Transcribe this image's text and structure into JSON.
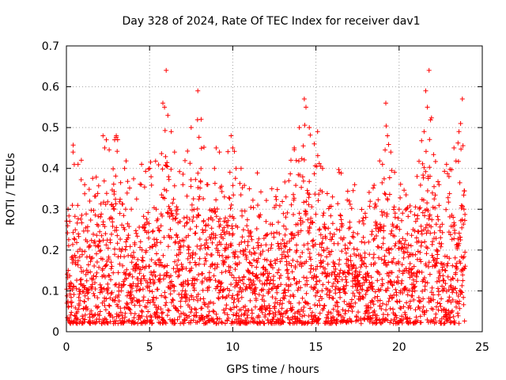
{
  "chart_data": {
    "type": "scatter",
    "title": "Day 328 of 2024, Rate Of TEC Index for receiver dav1",
    "xlabel": "GPS time / hours",
    "ylabel": "ROTI / TECUs",
    "xlim": [
      0,
      25
    ],
    "ylim": [
      0,
      0.7
    ],
    "x_ticks": [
      "0",
      "5",
      "10",
      "15",
      "20",
      "25"
    ],
    "y_ticks": [
      "0",
      "0.1",
      "0.2",
      "0.3",
      "0.4",
      "0.5",
      "0.6",
      "0.7"
    ],
    "grid": true,
    "marker": "plus",
    "series": [
      {
        "name": "ROTI",
        "color": "#ff0000",
        "points": [
          [
            0.1,
            0.3
          ],
          [
            0.2,
            0.27
          ],
          [
            0.4,
            0.44
          ],
          [
            0.7,
            0.41
          ],
          [
            0.9,
            0.42
          ],
          [
            1.1,
            0.36
          ],
          [
            1.4,
            0.32
          ],
          [
            2.2,
            0.48
          ],
          [
            2.3,
            0.45
          ],
          [
            2.4,
            0.47
          ],
          [
            2.9,
            0.47
          ],
          [
            3.0,
            0.48
          ],
          [
            3.5,
            0.4
          ],
          [
            3.9,
            0.3
          ],
          [
            4.5,
            0.36
          ],
          [
            5.0,
            0.4
          ],
          [
            5.4,
            0.3
          ],
          [
            5.8,
            0.56
          ],
          [
            5.9,
            0.55
          ],
          [
            6.0,
            0.64
          ],
          [
            6.1,
            0.53
          ],
          [
            6.3,
            0.49
          ],
          [
            6.5,
            0.44
          ],
          [
            7.0,
            0.36
          ],
          [
            7.5,
            0.5
          ],
          [
            7.9,
            0.59
          ],
          [
            8.1,
            0.52
          ],
          [
            8.5,
            0.36
          ],
          [
            9.0,
            0.45
          ],
          [
            9.2,
            0.44
          ],
          [
            9.5,
            0.33
          ],
          [
            9.9,
            0.48
          ],
          [
            10.0,
            0.45
          ],
          [
            10.2,
            0.4
          ],
          [
            10.5,
            0.4
          ],
          [
            11.0,
            0.35
          ],
          [
            11.5,
            0.31
          ],
          [
            12.0,
            0.27
          ],
          [
            12.6,
            0.31
          ],
          [
            13.2,
            0.33
          ],
          [
            13.5,
            0.42
          ],
          [
            13.7,
            0.45
          ],
          [
            14.0,
            0.5
          ],
          [
            14.3,
            0.57
          ],
          [
            14.4,
            0.55
          ],
          [
            14.6,
            0.5
          ],
          [
            14.9,
            0.46
          ],
          [
            15.1,
            0.49
          ],
          [
            15.4,
            0.4
          ],
          [
            16.0,
            0.33
          ],
          [
            16.4,
            0.39
          ],
          [
            17.0,
            0.32
          ],
          [
            17.5,
            0.24
          ],
          [
            18.0,
            0.28
          ],
          [
            18.6,
            0.26
          ],
          [
            19.0,
            0.41
          ],
          [
            19.2,
            0.56
          ],
          [
            19.3,
            0.48
          ],
          [
            19.5,
            0.44
          ],
          [
            20.0,
            0.3
          ],
          [
            20.5,
            0.24
          ],
          [
            21.0,
            0.27
          ],
          [
            21.5,
            0.49
          ],
          [
            21.6,
            0.59
          ],
          [
            21.7,
            0.55
          ],
          [
            21.8,
            0.64
          ],
          [
            22.0,
            0.34
          ],
          [
            22.4,
            0.36
          ],
          [
            23.0,
            0.38
          ],
          [
            23.3,
            0.45
          ],
          [
            23.6,
            0.49
          ],
          [
            23.7,
            0.51
          ],
          [
            23.8,
            0.57
          ],
          [
            23.9,
            0.3
          ]
        ]
      }
    ]
  }
}
